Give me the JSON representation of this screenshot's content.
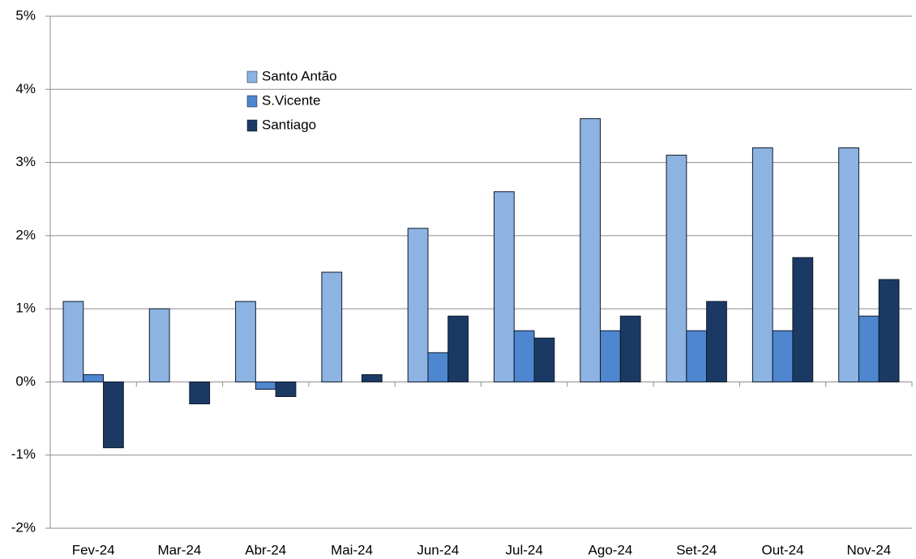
{
  "chart_data": {
    "type": "bar",
    "categories": [
      "Fev-24",
      "Mar-24",
      "Abr-24",
      "Mai-24",
      "Jun-24",
      "Jul-24",
      "Ago-24",
      "Set-24",
      "Out-24",
      "Nov-24"
    ],
    "series": [
      {
        "name": "Santo Antão",
        "color": "#8db3e2",
        "values": [
          1.1,
          1.0,
          1.1,
          1.5,
          2.1,
          2.6,
          3.6,
          3.1,
          3.2,
          3.2
        ]
      },
      {
        "name": "S.Vicente",
        "color": "#4f86d0",
        "values": [
          0.1,
          0,
          -0.1,
          0,
          0.4,
          0.7,
          0.7,
          0.7,
          0.7,
          0.9
        ]
      },
      {
        "name": "Santiago",
        "color": "#1b3a63",
        "values": [
          -0.9,
          -0.3,
          -0.2,
          0.1,
          0.9,
          0.6,
          0.9,
          1.1,
          1.7,
          1.4
        ]
      }
    ],
    "ylim": [
      -2,
      5
    ],
    "yticks": [
      {
        "value": -2,
        "label": "-2%"
      },
      {
        "value": -1,
        "label": "-1%"
      },
      {
        "value": 0,
        "label": "0%"
      },
      {
        "value": 1,
        "label": "1%"
      },
      {
        "value": 2,
        "label": "2%"
      },
      {
        "value": 3,
        "label": "3%"
      },
      {
        "value": 4,
        "label": "4%"
      },
      {
        "value": 5,
        "label": "5%"
      }
    ],
    "grid": true
  }
}
